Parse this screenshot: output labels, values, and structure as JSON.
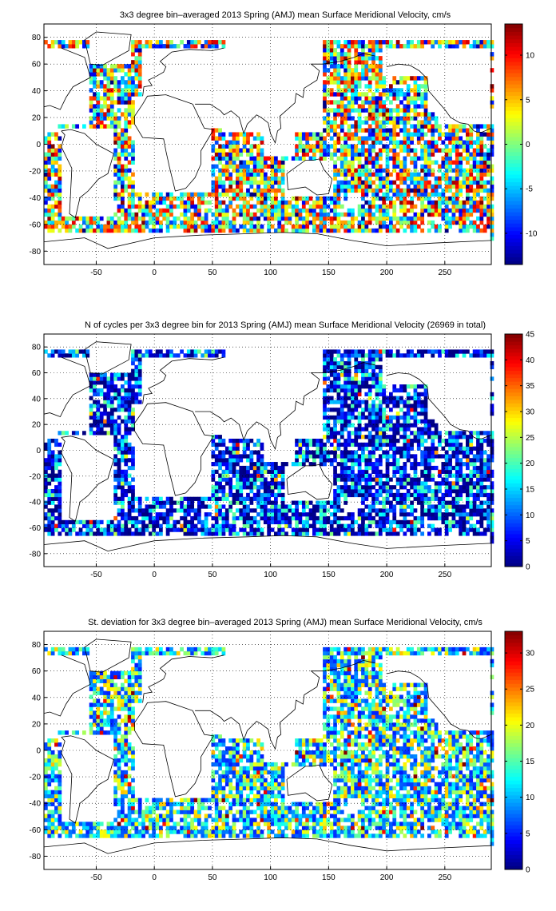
{
  "chart_data": [
    {
      "type": "heatmap",
      "title": "3x3 degree bin–averaged 2013 Spring (AMJ) mean Surface Meridional Velocity, cm/s",
      "xlabel": "",
      "ylabel": "",
      "xlim": [
        -95,
        290
      ],
      "ylim": [
        -90,
        90
      ],
      "xticks": [
        -50,
        0,
        50,
        100,
        150,
        200,
        250
      ],
      "yticks": [
        -80,
        -60,
        -40,
        -20,
        0,
        20,
        40,
        60,
        80
      ],
      "grid": true,
      "colorbar": {
        "range": [
          -13.5,
          13.5
        ],
        "ticks": [
          -10,
          -5,
          0,
          5,
          10
        ],
        "placement": "right"
      },
      "value_character": "diverging, values mostly within ±10 cm/s",
      "bin_size_deg": 3
    },
    {
      "type": "heatmap",
      "title": "N of cycles per 3x3 degree bin for 2013 Spring (AMJ) mean Surface Meridional Velocity (26969 in total)",
      "xlabel": "",
      "ylabel": "",
      "xlim": [
        -95,
        290
      ],
      "ylim": [
        -90,
        90
      ],
      "xticks": [
        -50,
        0,
        50,
        100,
        150,
        200,
        250
      ],
      "yticks": [
        -80,
        -60,
        -40,
        -20,
        0,
        20,
        40,
        60,
        80
      ],
      "grid": true,
      "colorbar": {
        "range": [
          0,
          45
        ],
        "ticks": [
          0,
          5,
          10,
          15,
          20,
          25,
          30,
          35,
          40,
          45
        ],
        "placement": "right"
      },
      "total_cycles": 26969,
      "value_character": "mostly 0–15 cycles per bin",
      "bin_size_deg": 3
    },
    {
      "type": "heatmap",
      "title": "St. deviation for 3x3 degree bin–averaged 2013 Spring (AMJ) mean Surface Meridional Velocity, cm/s",
      "xlabel": "",
      "ylabel": "",
      "xlim": [
        -95,
        290
      ],
      "ylim": [
        -90,
        90
      ],
      "xticks": [
        -50,
        0,
        50,
        100,
        150,
        200,
        250
      ],
      "yticks": [
        -80,
        -60,
        -40,
        -20,
        0,
        20,
        40,
        60,
        80
      ],
      "grid": true,
      "colorbar": {
        "range": [
          0,
          33
        ],
        "ticks": [
          0,
          5,
          10,
          15,
          20,
          25,
          30
        ],
        "placement": "right"
      },
      "value_character": "mostly 5–20 cm/s, higher in boundary currents",
      "bin_size_deg": 3
    }
  ],
  "colormap": "jet"
}
